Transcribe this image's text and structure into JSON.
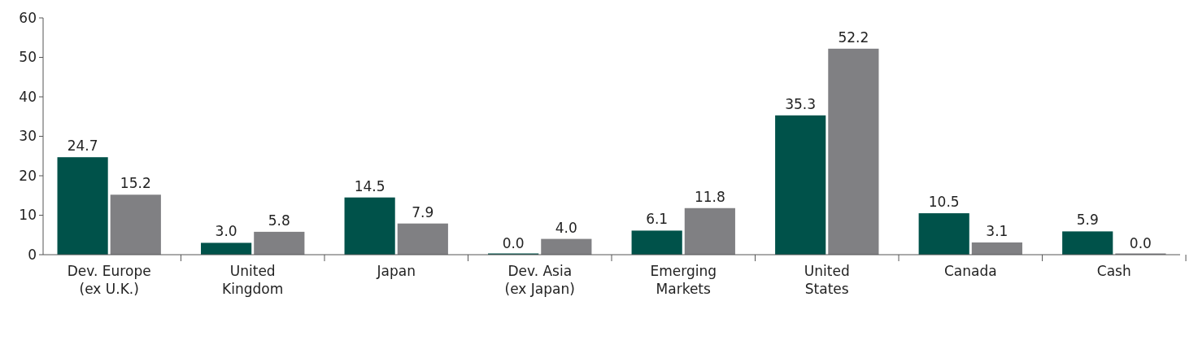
{
  "chart_data": {
    "type": "bar",
    "categories": [
      "Dev. Europe\n(ex U.K.)",
      "United\nKingdom",
      "Japan",
      "Dev. Asia\n(ex Japan)",
      "Emerging\nMarkets",
      "United\nStates",
      "Canada",
      "Cash"
    ],
    "series": [
      {
        "color": "#00524a",
        "values": [
          24.7,
          3.0,
          14.5,
          0.0,
          6.1,
          35.3,
          10.5,
          5.9
        ],
        "value_labels": [
          "24.7",
          "3.0",
          "14.5",
          "0.0",
          "6.1",
          "35.3",
          "10.5",
          "5.9"
        ]
      },
      {
        "color": "#808083",
        "values": [
          15.2,
          5.8,
          7.9,
          4.0,
          11.8,
          52.2,
          3.1,
          0.0
        ],
        "value_labels": [
          "15.2",
          "5.8",
          "7.9",
          "4.0",
          "11.8",
          "52.2",
          "3.1",
          "0.0"
        ]
      }
    ],
    "ylim": [
      0,
      60
    ],
    "yticks": [
      0,
      10,
      20,
      30,
      40,
      50,
      60
    ],
    "grid": false
  }
}
